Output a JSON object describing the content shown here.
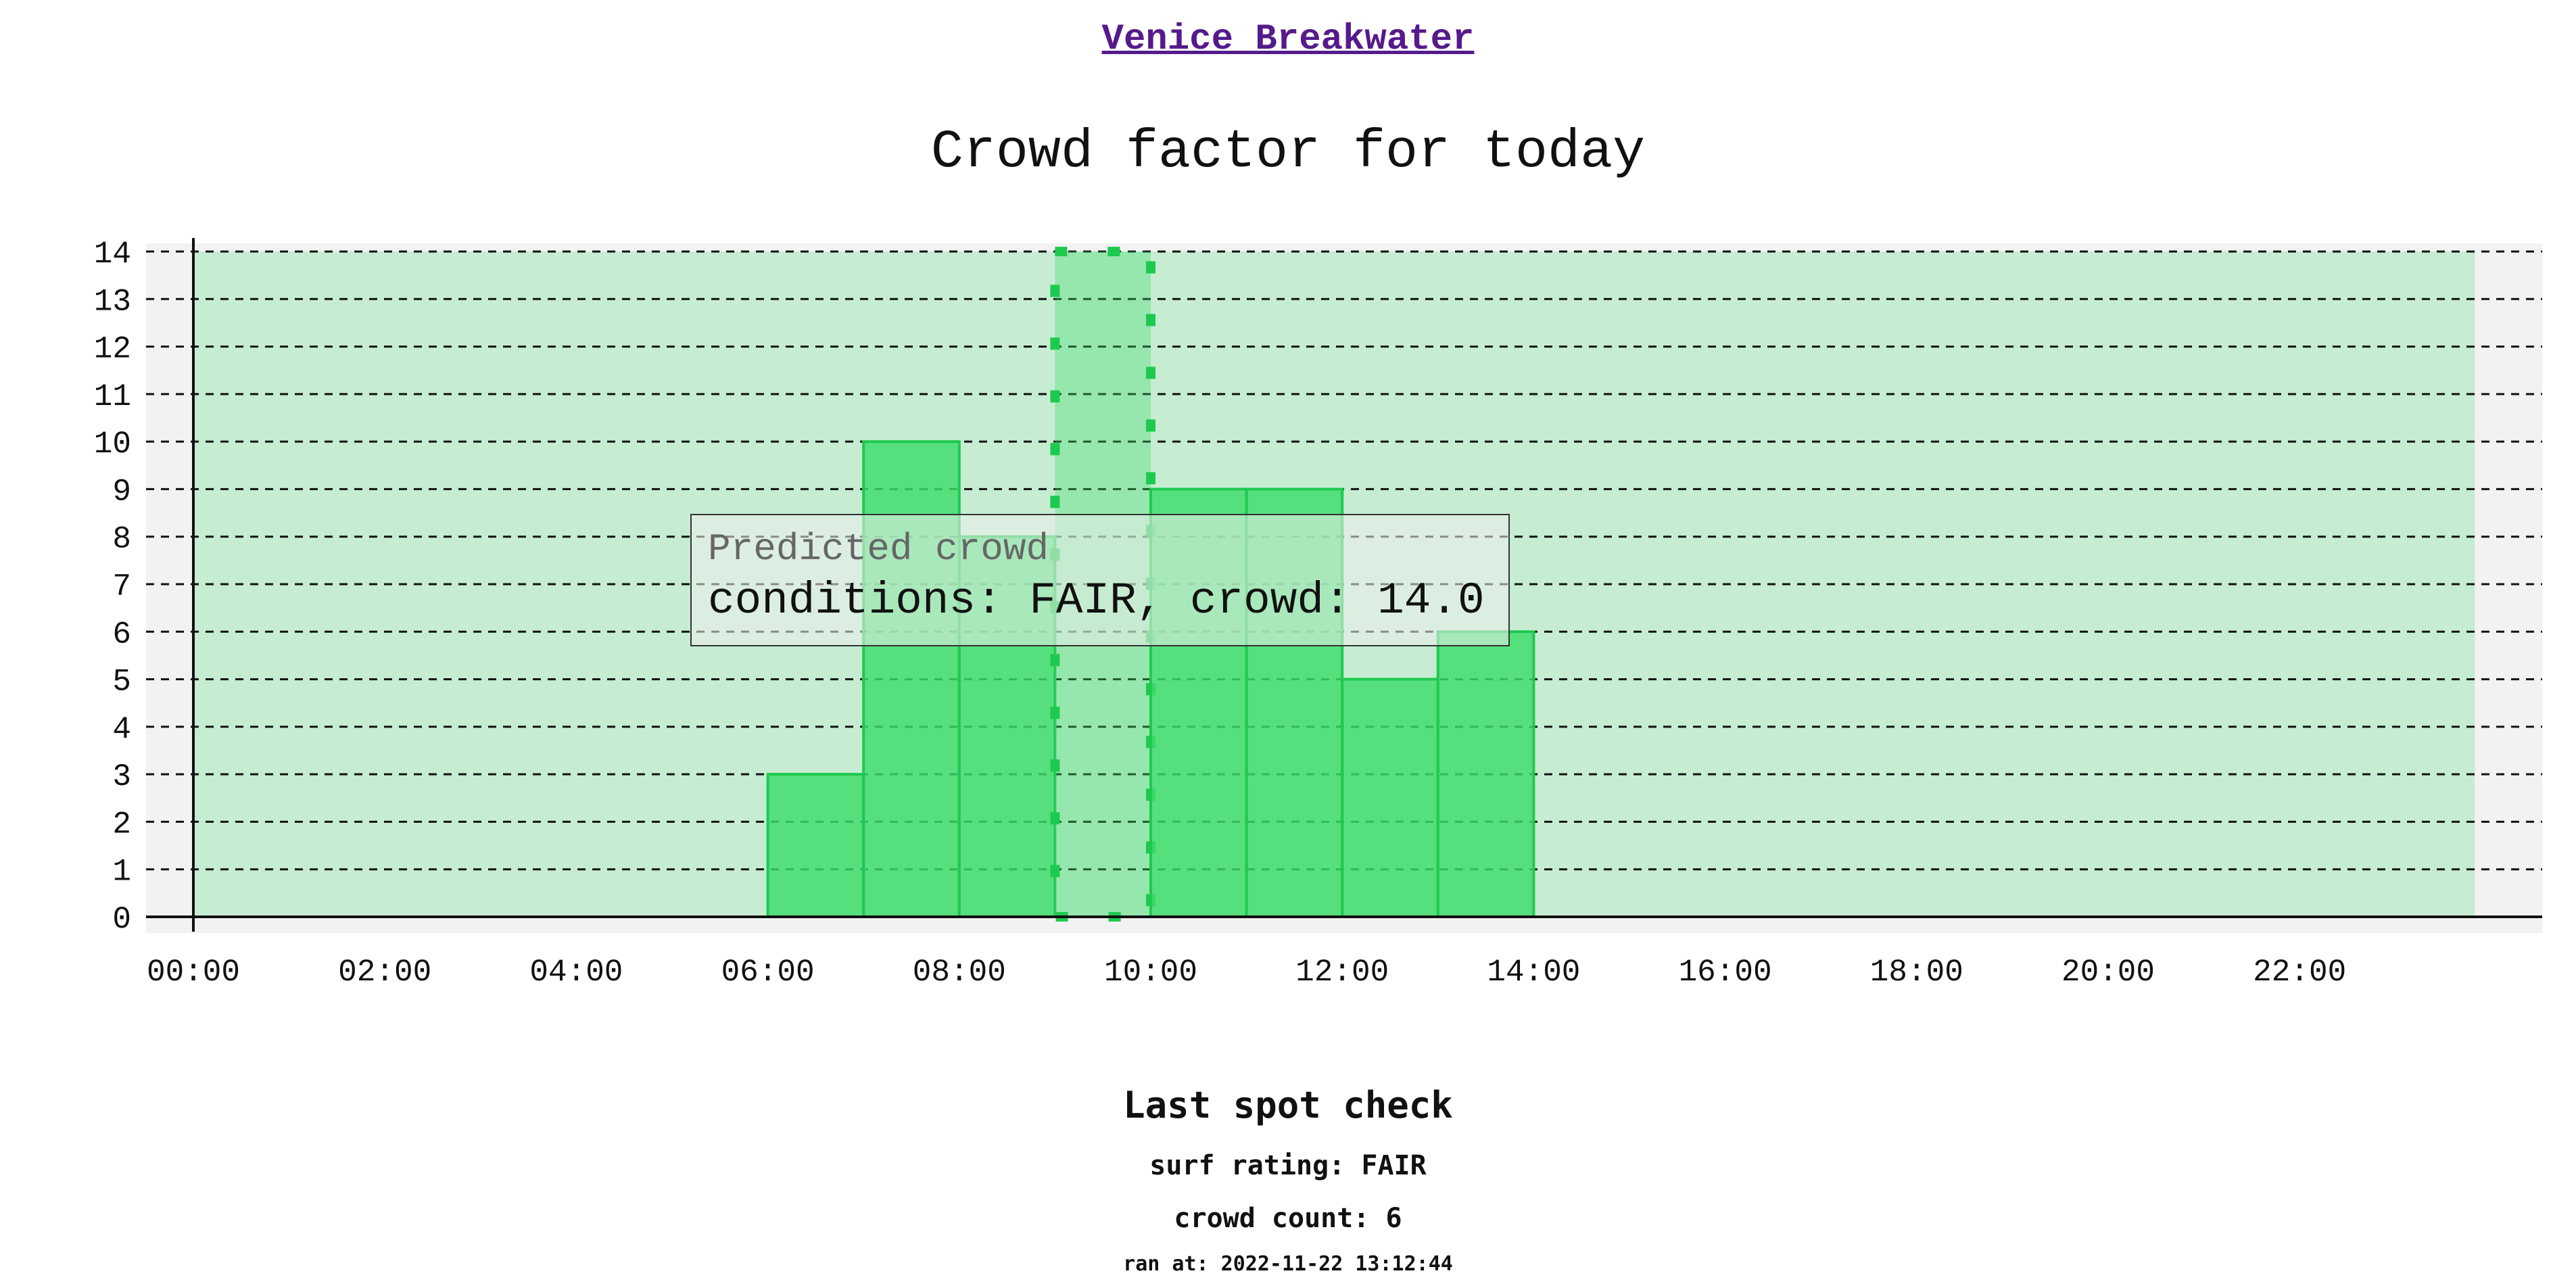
{
  "header": {
    "spot_name": "Venice Breakwater"
  },
  "chart_data": {
    "type": "bar",
    "title": "Crowd factor for today",
    "xlabel": "",
    "ylabel": "",
    "categories": [
      "00:00",
      "01:00",
      "02:00",
      "03:00",
      "04:00",
      "05:00",
      "06:00",
      "07:00",
      "08:00",
      "09:00",
      "10:00",
      "11:00",
      "12:00",
      "13:00",
      "14:00",
      "15:00",
      "16:00",
      "17:00",
      "18:00",
      "19:00",
      "20:00",
      "21:00",
      "22:00",
      "23:00"
    ],
    "x_tick_labels": [
      "00:00",
      "02:00",
      "04:00",
      "06:00",
      "08:00",
      "10:00",
      "12:00",
      "14:00",
      "16:00",
      "18:00",
      "20:00",
      "22:00"
    ],
    "y_tick_labels": [
      "0",
      "1",
      "2",
      "3",
      "4",
      "5",
      "6",
      "7",
      "8",
      "9",
      "10",
      "11",
      "12",
      "13",
      "14"
    ],
    "ylim": [
      0,
      14
    ],
    "grid": true,
    "legend": "none",
    "series": [
      {
        "name": "Predicted crowd",
        "values": [
          null,
          null,
          null,
          null,
          null,
          null,
          3,
          10,
          8,
          14,
          9,
          9,
          5,
          6,
          null,
          null,
          null,
          null,
          null,
          null,
          null,
          null,
          null,
          null
        ],
        "conditions": [
          null,
          null,
          null,
          null,
          null,
          null,
          "FAIR",
          "FAIR",
          "FAIR",
          "FAIR",
          "FAIR",
          "FAIR",
          "FAIR",
          "FAIR",
          null,
          null,
          null,
          null,
          null,
          null,
          null,
          null,
          null,
          null
        ]
      }
    ],
    "highlighted_index": 9,
    "colors": {
      "bar_fill": "#3ddc6a",
      "bar_border": "#1ec94f",
      "band_fill": "#c6edd2",
      "plot_background": "#f2f2f2"
    }
  },
  "tooltip": {
    "title": "Predicted crowd",
    "body": "conditions: FAIR, crowd: 14.0"
  },
  "last_check": {
    "heading": "Last spot check",
    "surf_rating": "surf rating: FAIR",
    "crowd_count": "crowd count: 6",
    "ran_at": "ran at: 2022-11-22 13:12:44"
  }
}
